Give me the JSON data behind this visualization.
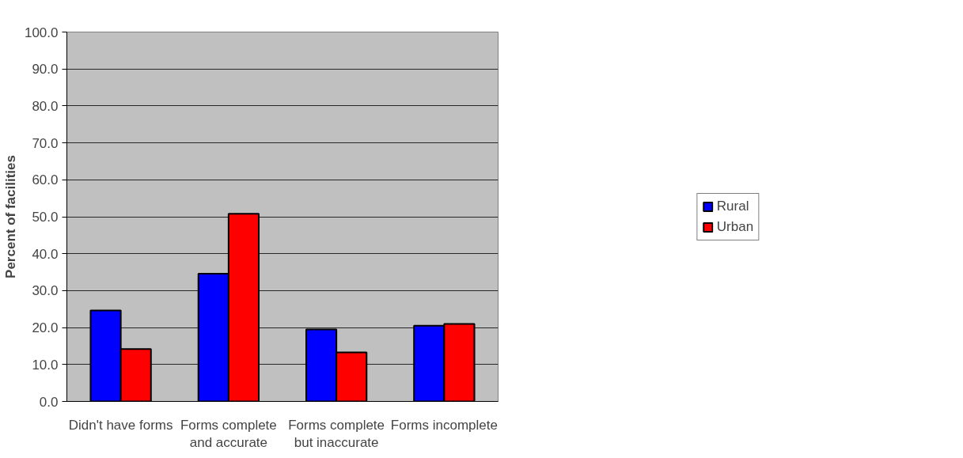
{
  "chart_data": {
    "type": "bar",
    "ylabel": "Percent of facilities",
    "categories": [
      "Didn't have forms",
      "Forms complete\nand accurate",
      "Forms complete\nbut inaccurate",
      "Forms incomplete"
    ],
    "series": [
      {
        "name": "Rural",
        "color": "#0000ff",
        "values": [
          24.6,
          34.6,
          19.5,
          20.5
        ]
      },
      {
        "name": "Urban",
        "color": "#ff0000",
        "values": [
          14.2,
          50.8,
          13.3,
          21.0
        ]
      }
    ],
    "ylim": [
      0,
      100
    ],
    "yticks": [
      {
        "value": 0,
        "label": "0.0"
      },
      {
        "value": 10,
        "label": "10.0"
      },
      {
        "value": 20,
        "label": "20.0"
      },
      {
        "value": 30,
        "label": "30.0"
      },
      {
        "value": 40,
        "label": "40.0"
      },
      {
        "value": 50,
        "label": "50.0"
      },
      {
        "value": 60,
        "label": "60.0"
      },
      {
        "value": 70,
        "label": "70.0"
      },
      {
        "value": 80,
        "label": "80.0"
      },
      {
        "value": 90,
        "label": "90.0"
      },
      {
        "value": 100,
        "label": "100.0"
      }
    ],
    "grid": "y",
    "legend": "right"
  }
}
